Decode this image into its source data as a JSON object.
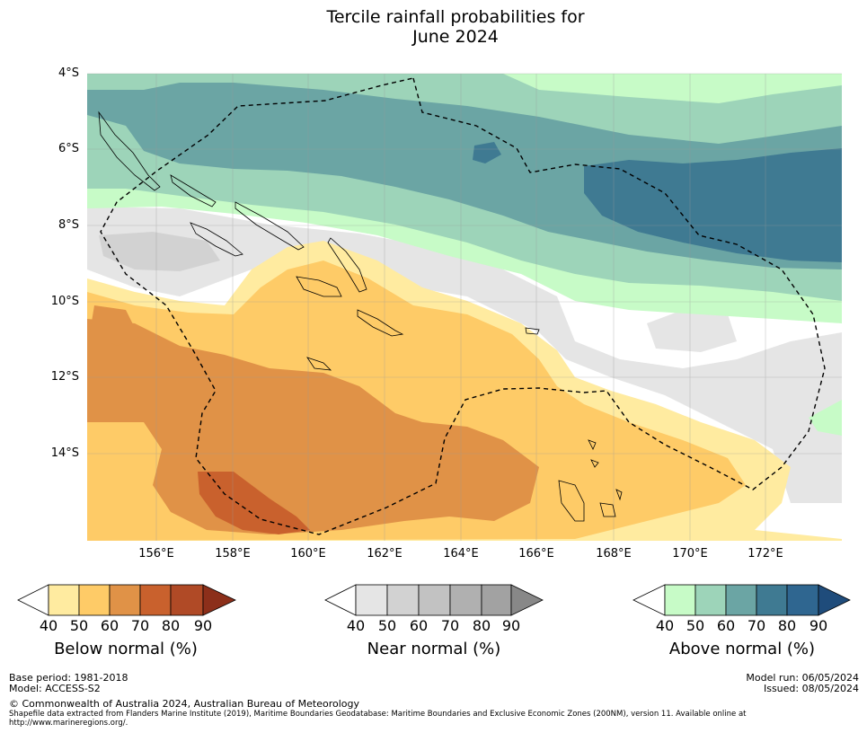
{
  "title": {
    "line1": "Tercile rainfall probabilities for",
    "line2": "June 2024"
  },
  "map": {
    "latitudes": [
      "4°S",
      "6°S",
      "8°S",
      "10°S",
      "12°S",
      "14°S"
    ],
    "longitudes": [
      "156°E",
      "158°E",
      "160°E",
      "162°E",
      "164°E",
      "166°E",
      "168°E",
      "170°E",
      "172°E"
    ]
  },
  "colors": {
    "below": [
      "#ffffff",
      "#ffeba0",
      "#fecb67",
      "#e09247",
      "#c9612d",
      "#b04a26",
      "#8c2f1a"
    ],
    "near": [
      "#ffffff",
      "#e5e5e5",
      "#d2d2d2",
      "#c2c2c2",
      "#b0b0b0",
      "#a2a2a2",
      "#888888"
    ],
    "above": [
      "#ffffff",
      "#c7fbc7",
      "#9dd4b9",
      "#6ba5a4",
      "#3f7a92",
      "#2f6690",
      "#1f4c7b"
    ]
  },
  "colorbars": [
    {
      "label": "Below normal (%)",
      "ticks": [
        "40",
        "50",
        "60",
        "70",
        "80",
        "90"
      ]
    },
    {
      "label": "Near normal (%)",
      "ticks": [
        "40",
        "50",
        "60",
        "70",
        "80",
        "90"
      ]
    },
    {
      "label": "Above normal (%)",
      "ticks": [
        "40",
        "50",
        "60",
        "70",
        "80",
        "90"
      ]
    }
  ],
  "footer": {
    "base_period": "Base period: 1981-2018",
    "model": "Model: ACCESS-S2",
    "copyright": "© Commonwealth of Australia 2024, Australian Bureau of Meteorology",
    "shapefile": "Shapefile data extracted from Flanders Marine Institute (2019), Maritime Boundaries Geodatabase: Maritime Boundaries and Exclusive Economic Zones (200NM), version 11. Available online at http://www.marineregions.org/.",
    "model_run": "Model run: 06/05/2024",
    "issued": "Issued: 08/05/2024"
  }
}
